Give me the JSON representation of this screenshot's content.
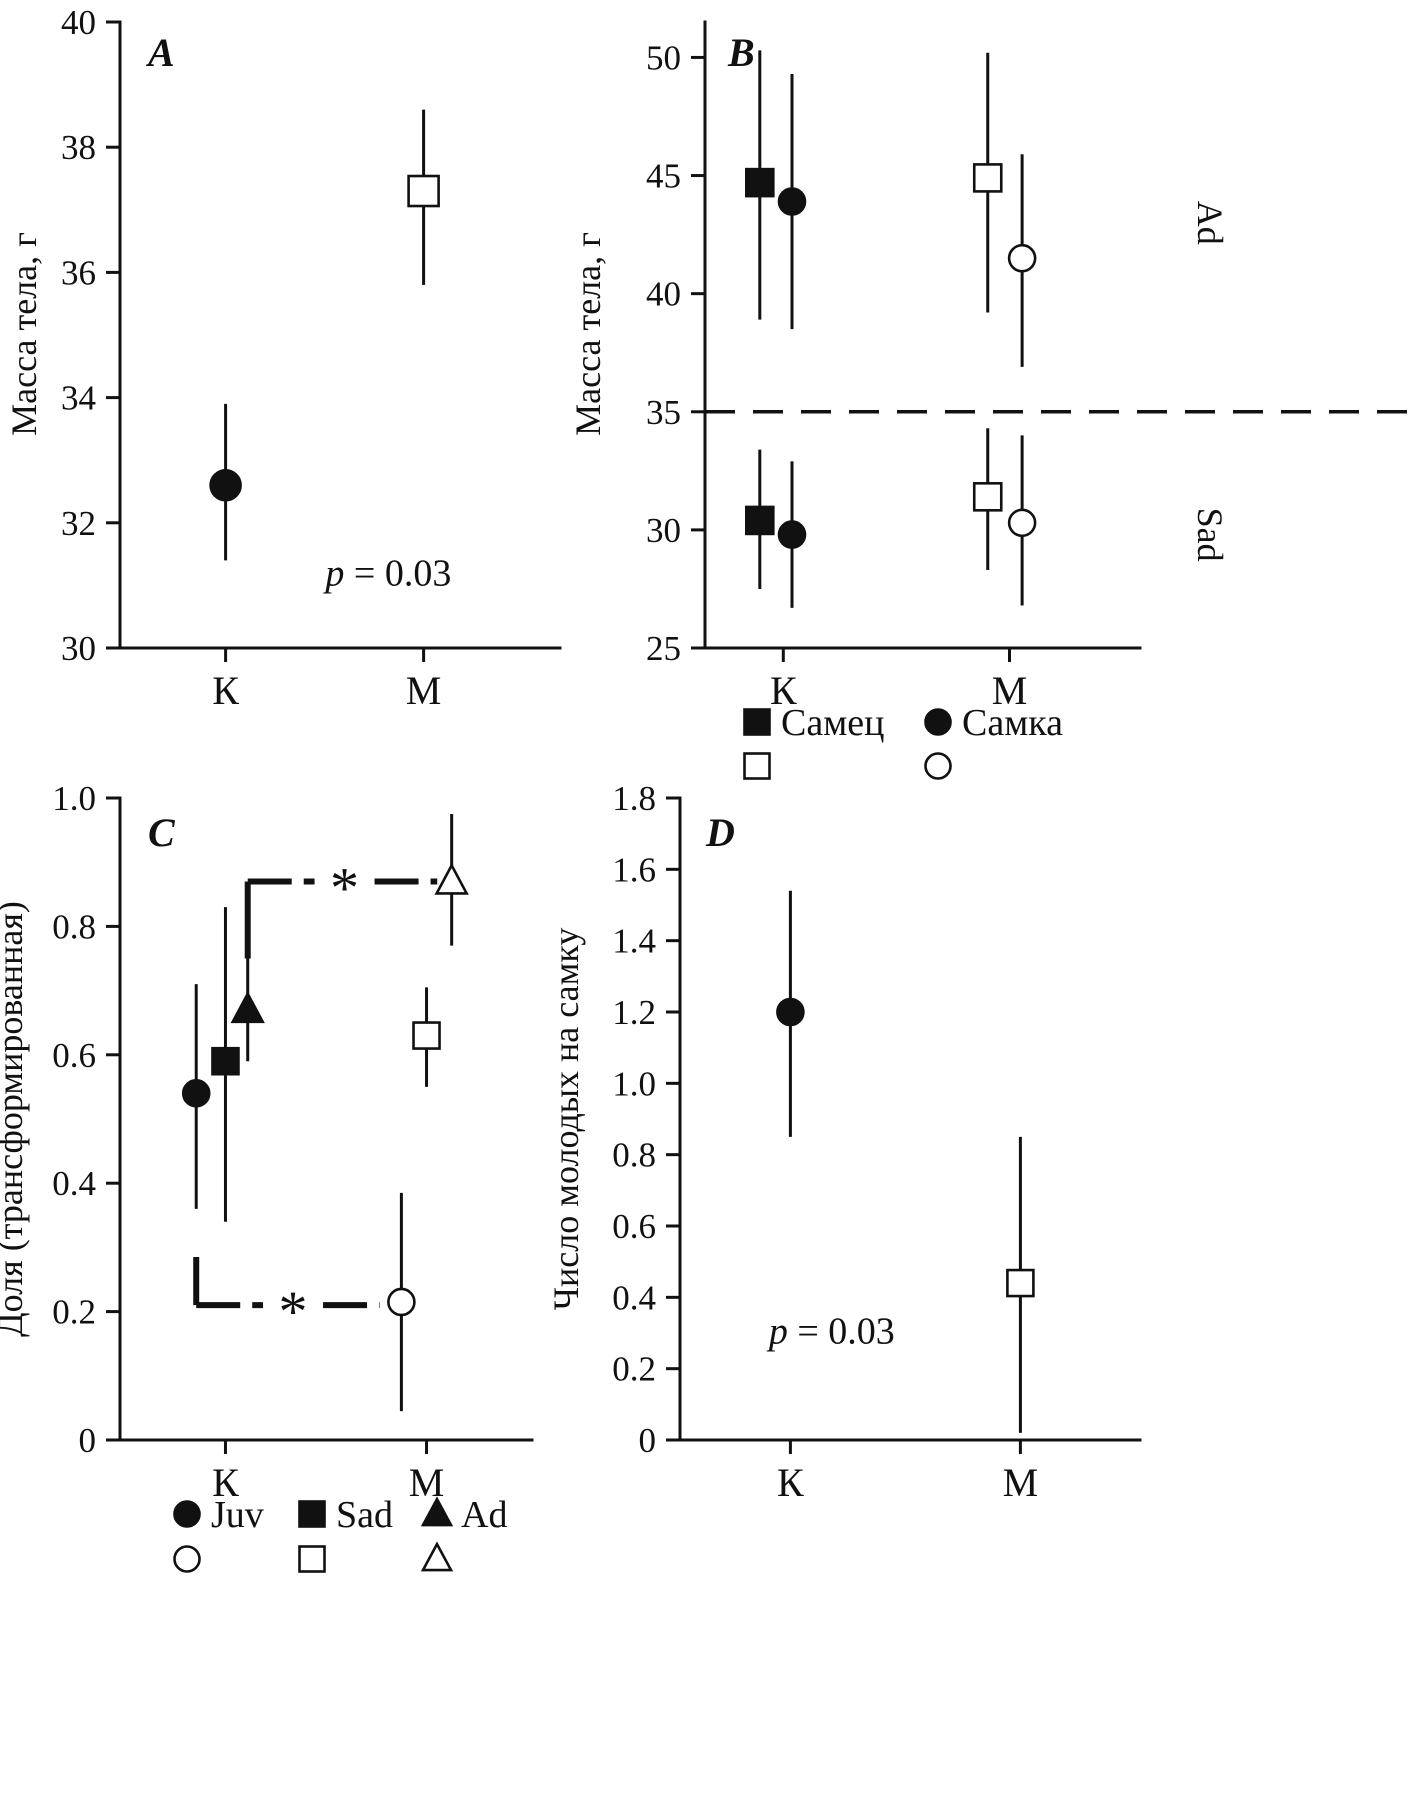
{
  "figure": {
    "background": "#ffffff",
    "ink": "#111111"
  },
  "chart_data": [
    {
      "panel": "A",
      "type": "scatter",
      "panel_label": "A",
      "ylabel": "Масса тела, г",
      "ylim": [
        30,
        40
      ],
      "yticks": [
        "30",
        "32",
        "34",
        "36",
        "38",
        "40"
      ],
      "categories": [
        {
          "label": "К",
          "xf": 0.24
        },
        {
          "label": "М",
          "xf": 0.69
        }
      ],
      "annotation": {
        "italic": "p",
        "rest": " = 0.03",
        "xf": 0.61,
        "value": 31.0
      },
      "points": [
        {
          "category": "К",
          "marker": "circle-filled",
          "xf": 0.24,
          "value": 32.6,
          "ci": [
            31.4,
            33.9
          ]
        },
        {
          "category": "М",
          "marker": "square-open",
          "xf": 0.69,
          "value": 37.3,
          "ci": [
            35.8,
            38.6
          ]
        }
      ]
    },
    {
      "panel": "B",
      "type": "scatter",
      "panel_label": "B",
      "ylabel": "Масса тела, г",
      "ylim": [
        25,
        51.5
      ],
      "yticks": [
        "25",
        "30",
        "35",
        "40",
        "45",
        "50"
      ],
      "dashed_line": 35,
      "side_labels": [
        {
          "text": "Ad",
          "value": 43
        },
        {
          "text": "Sad",
          "value": 29.8
        }
      ],
      "categories": [
        {
          "label": "К",
          "xf": 0.18
        },
        {
          "label": "М",
          "xf": 0.7
        }
      ],
      "points": [
        {
          "group": "Ad",
          "series": "Самец",
          "category": "К",
          "marker": "square-filled",
          "xf": 0.126,
          "value": 44.7,
          "ci": [
            38.9,
            50.3
          ]
        },
        {
          "group": "Ad",
          "series": "Самка",
          "category": "К",
          "marker": "circle-filled",
          "xf": 0.2,
          "value": 43.9,
          "ci": [
            38.5,
            49.3
          ]
        },
        {
          "group": "Ad",
          "series": "Самец",
          "category": "М",
          "marker": "square-open",
          "xf": 0.65,
          "value": 44.9,
          "ci": [
            39.2,
            50.2
          ]
        },
        {
          "group": "Ad",
          "series": "Самка",
          "category": "М",
          "marker": "circle-open",
          "xf": 0.729,
          "value": 41.5,
          "ci": [
            36.9,
            45.9
          ]
        },
        {
          "group": "Sad",
          "series": "Самец",
          "category": "К",
          "marker": "square-filled",
          "xf": 0.126,
          "value": 30.4,
          "ci": [
            27.5,
            33.4
          ]
        },
        {
          "group": "Sad",
          "series": "Самка",
          "category": "К",
          "marker": "circle-filled",
          "xf": 0.2,
          "value": 29.8,
          "ci": [
            26.7,
            32.9
          ]
        },
        {
          "group": "Sad",
          "series": "Самец",
          "category": "М",
          "marker": "square-open",
          "xf": 0.65,
          "value": 31.4,
          "ci": [
            28.3,
            34.3
          ]
        },
        {
          "group": "Sad",
          "series": "Самка",
          "category": "М",
          "marker": "circle-open",
          "xf": 0.729,
          "value": 30.3,
          "ci": [
            26.8,
            34.0
          ]
        }
      ],
      "legend": {
        "rows": [
          [
            {
              "marker": "square-filled",
              "label": "Самец"
            },
            {
              "marker": "circle-filled",
              "label": "Самка"
            }
          ],
          [
            {
              "marker": "square-open",
              "label": ""
            },
            {
              "marker": "circle-open",
              "label": ""
            }
          ]
        ]
      }
    },
    {
      "panel": "C",
      "type": "scatter",
      "panel_label": "C",
      "ylabel": "Доля (трансформированная)",
      "ylim": [
        0,
        1.0
      ],
      "yticks": [
        "0",
        "0.2",
        "0.4",
        "0.6",
        "0.8",
        "1.0"
      ],
      "categories": [
        {
          "label": "К",
          "xf": 0.256
        },
        {
          "label": "М",
          "xf": 0.744
        }
      ],
      "points": [
        {
          "series": "Juv",
          "category": "К",
          "marker": "circle-filled",
          "xf": 0.185,
          "value": 0.54,
          "ci": [
            0.36,
            0.71
          ]
        },
        {
          "series": "Sad",
          "category": "К",
          "marker": "square-filled",
          "xf": 0.256,
          "value": 0.59,
          "ci": [
            0.34,
            0.83
          ]
        },
        {
          "series": "Ad",
          "category": "К",
          "marker": "triangle-filled",
          "xf": 0.31,
          "value": 0.67,
          "ci": [
            0.59,
            0.75
          ]
        },
        {
          "series": "Juv",
          "category": "М",
          "marker": "circle-open",
          "xf": 0.683,
          "value": 0.215,
          "ci": [
            0.045,
            0.385
          ]
        },
        {
          "series": "Sad",
          "category": "М",
          "marker": "square-open",
          "xf": 0.744,
          "value": 0.63,
          "ci": [
            0.55,
            0.705
          ]
        },
        {
          "series": "Ad",
          "category": "М",
          "marker": "triangle-open",
          "xf": 0.805,
          "value": 0.87,
          "ci": [
            0.77,
            0.975
          ]
        }
      ],
      "brackets": [
        {
          "y": 0.87,
          "xf_start": 0.31,
          "xf_end": 0.77,
          "tail_y": 0.75,
          "label": "*",
          "label_xf": 0.545
        },
        {
          "y": 0.21,
          "xf_start": 0.185,
          "xf_end": 0.63,
          "tail_y": 0.285,
          "label": "*",
          "label_xf": 0.42
        }
      ],
      "legend": {
        "rows": [
          [
            {
              "marker": "circle-filled",
              "label": "Juv"
            },
            {
              "marker": "square-filled",
              "label": "Sad"
            },
            {
              "marker": "triangle-filled",
              "label": "Ad"
            }
          ],
          [
            {
              "marker": "circle-open",
              "label": ""
            },
            {
              "marker": "square-open",
              "label": ""
            },
            {
              "marker": "triangle-open",
              "label": ""
            }
          ]
        ]
      }
    },
    {
      "panel": "D",
      "type": "scatter",
      "panel_label": "D",
      "ylabel": "Число молодых на самку",
      "ylim": [
        0,
        1.8
      ],
      "yticks": [
        "0",
        "0.2",
        "0.4",
        "0.6",
        "0.8",
        "1.0",
        "1.2",
        "1.4",
        "1.6",
        "1.8"
      ],
      "categories": [
        {
          "label": "К",
          "xf": 0.24
        },
        {
          "label": "М",
          "xf": 0.74
        }
      ],
      "annotation": {
        "italic": "p",
        "rest": " = 0.03",
        "xf": 0.33,
        "value": 0.27
      },
      "points": [
        {
          "category": "К",
          "marker": "circle-filled",
          "xf": 0.24,
          "value": 1.2,
          "ci": [
            0.85,
            1.54
          ]
        },
        {
          "category": "М",
          "marker": "square-open",
          "xf": 0.74,
          "value": 0.44,
          "ci": [
            0.02,
            0.85
          ]
        }
      ]
    }
  ]
}
